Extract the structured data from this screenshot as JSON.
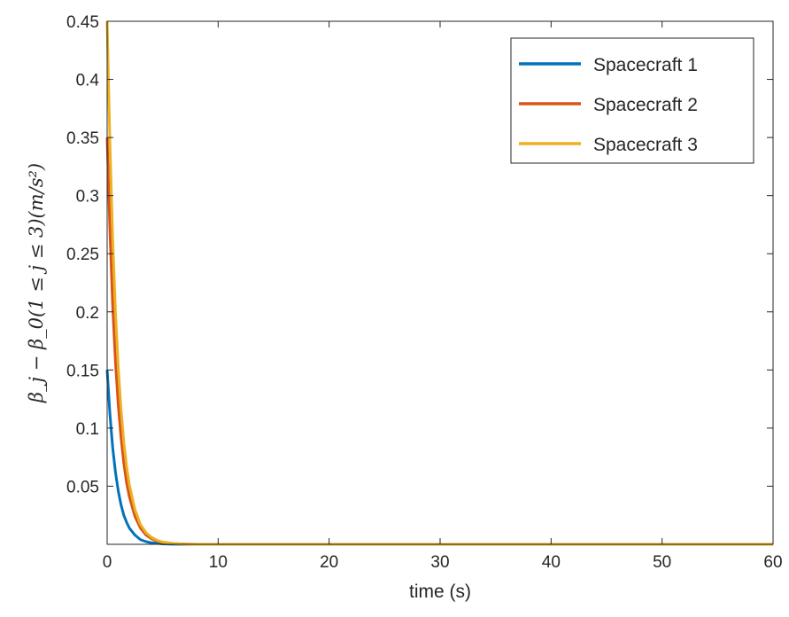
{
  "chart_data": {
    "type": "line",
    "xlabel": "time (s)",
    "ylabel": "β_j − β_0(1 ≤ j ≤ 3)(m/s²)",
    "xlim": [
      0,
      60
    ],
    "ylim": [
      0,
      0.45
    ],
    "x_ticks": [
      0,
      10,
      20,
      30,
      40,
      50,
      60
    ],
    "x_tick_labels": [
      "0",
      "10",
      "20",
      "30",
      "40",
      "50",
      "60"
    ],
    "y_ticks": [
      0.05,
      0.1,
      0.15,
      0.2,
      0.25,
      0.3,
      0.35,
      0.4,
      0.45
    ],
    "y_tick_labels": [
      "0.05",
      "0.1",
      "0.15",
      "0.2",
      "0.25",
      "0.3",
      "0.35",
      "0.4",
      "0.45"
    ],
    "grid": false,
    "legend_position": "top-right",
    "series": [
      {
        "name": "Spacecraft 1",
        "color": "#0072BD",
        "x": [
          0,
          0.25,
          0.5,
          0.75,
          1,
          1.25,
          1.5,
          1.75,
          2,
          2.5,
          3,
          3.5,
          4,
          5,
          6,
          8,
          60
        ],
        "values": [
          0.15,
          0.112,
          0.083,
          0.062,
          0.046,
          0.034,
          0.025,
          0.019,
          0.014,
          0.008,
          0.004,
          0.0023,
          0.0013,
          0.0004,
          0.0001,
          0,
          0
        ]
      },
      {
        "name": "Spacecraft 2",
        "color": "#D95319",
        "x": [
          0,
          0.25,
          0.5,
          0.75,
          1,
          1.25,
          1.5,
          1.75,
          2,
          2.5,
          3,
          3.5,
          4,
          4.5,
          5,
          6,
          7,
          8,
          60
        ],
        "values": [
          0.35,
          0.27,
          0.205,
          0.157,
          0.12,
          0.092,
          0.07,
          0.053,
          0.041,
          0.024,
          0.014,
          0.008,
          0.0048,
          0.0028,
          0.0016,
          0.0006,
          0.0002,
          0,
          0
        ]
      },
      {
        "name": "Spacecraft 3",
        "color": "#EDB120",
        "x": [
          0,
          0.25,
          0.5,
          0.75,
          1,
          1.25,
          1.5,
          1.75,
          2,
          2.5,
          3,
          3.5,
          4,
          4.5,
          5,
          6,
          7,
          8,
          60
        ],
        "values": [
          0.45,
          0.345,
          0.262,
          0.2,
          0.152,
          0.116,
          0.088,
          0.067,
          0.051,
          0.03,
          0.017,
          0.01,
          0.006,
          0.0035,
          0.002,
          0.0007,
          0.0002,
          0,
          0
        ]
      }
    ]
  }
}
